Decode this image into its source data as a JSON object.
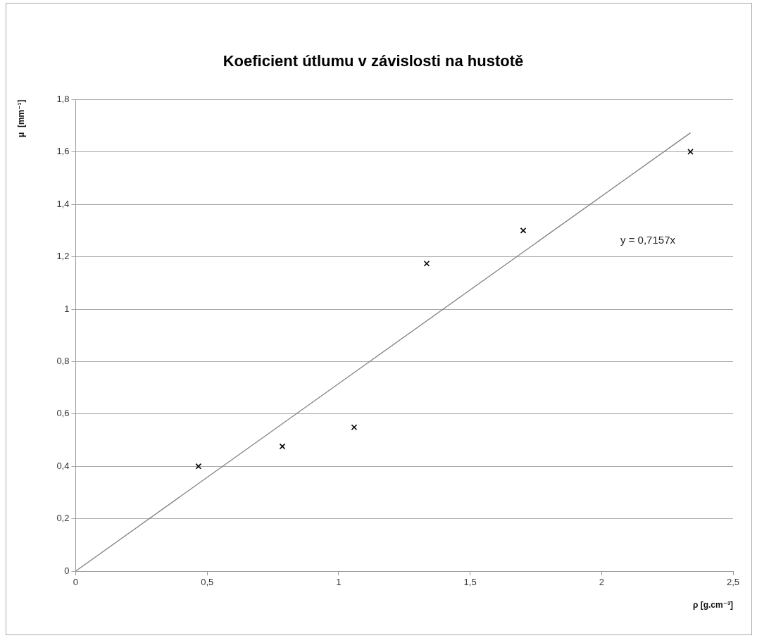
{
  "chart_data": {
    "type": "scatter",
    "title": "Koeficient útlumu v závislosti na hustotě",
    "xlabel": "ρ [g.cm⁻³]",
    "ylabel": "μ  [mm⁻¹]",
    "x": [
      0.467,
      0.786,
      1.059,
      1.335,
      1.702,
      2.338
    ],
    "series": [
      {
        "type": "scatter",
        "color": "#000000",
        "marker": "cross",
        "values": [
          0.4,
          0.476,
          0.549,
          1.174,
          1.3,
          1.601
        ]
      },
      {
        "type": "line",
        "color": "#808080",
        "marker": "none",
        "x": [
          0,
          2.338
        ],
        "values": [
          0,
          1.673
        ]
      }
    ],
    "xlim": [
      0,
      2.5
    ],
    "xticks": [
      0,
      {
        "value": 0.5,
        "label": "0,5"
      },
      1,
      {
        "value": 1.5,
        "label": "1,5"
      },
      2,
      {
        "value": 2.5,
        "label": "2,5"
      }
    ],
    "ylim": [
      0,
      1.8
    ],
    "yticks": [
      0,
      {
        "value": 0.2,
        "label": "0,2"
      },
      {
        "value": 0.4,
        "label": "0,4"
      },
      {
        "value": 0.6,
        "label": "0,6"
      },
      {
        "value": 0.8,
        "label": "0,8"
      },
      1,
      {
        "value": 1.2,
        "label": "1,2"
      },
      {
        "value": 1.4,
        "label": "1,4"
      },
      {
        "value": 1.6,
        "label": "1,6"
      },
      {
        "value": 1.8,
        "label": "1,8"
      }
    ],
    "grid": "y",
    "legend": false,
    "annotations": [
      "y = 0,7157x"
    ]
  }
}
